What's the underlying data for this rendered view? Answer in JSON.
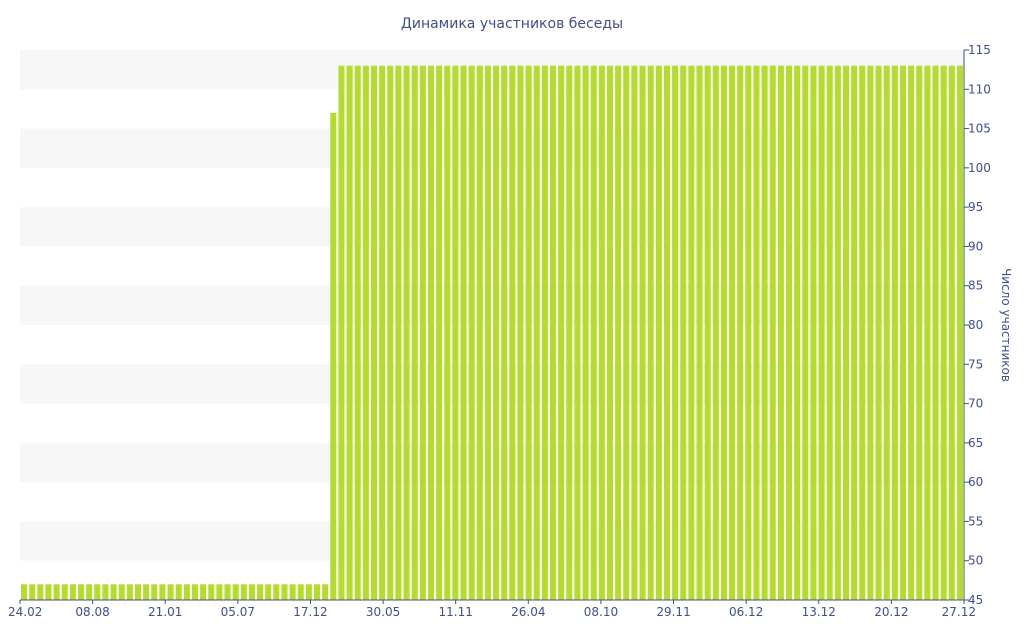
{
  "chart_data": {
    "type": "bar",
    "title": "Динамика участников беседы",
    "xlabel": "",
    "ylabel": "Число участников",
    "ylim": [
      45,
      115
    ],
    "yticks": [
      45,
      50,
      55,
      60,
      65,
      70,
      75,
      80,
      85,
      90,
      95,
      100,
      105,
      110,
      115
    ],
    "y_axis_position": "right",
    "grid": "alternating horizontal bands",
    "legend": "none",
    "x_tick_labels": [
      "24.02",
      "08.08",
      "21.01",
      "05.07",
      "17.12",
      "30.05",
      "11.11",
      "26.04",
      "08.10",
      "29.11",
      "06.12",
      "13.12",
      "20.12",
      "27.12"
    ],
    "colors": {
      "bar": "#b5dc2c",
      "band": "#f7f7f7",
      "text": "#3f4f8f",
      "axis": "#3f4f8f"
    },
    "values": [
      47,
      47,
      47,
      47,
      47,
      47,
      47,
      47,
      47,
      47,
      47,
      47,
      47,
      47,
      47,
      47,
      47,
      47,
      47,
      47,
      47,
      47,
      47,
      47,
      47,
      47,
      47,
      47,
      47,
      47,
      47,
      47,
      47,
      47,
      47,
      47,
      47,
      47,
      107,
      113,
      113,
      113,
      113,
      113,
      113,
      113,
      113,
      113,
      113,
      113,
      113,
      113,
      113,
      113,
      113,
      113,
      113,
      113,
      113,
      113,
      113,
      113,
      113,
      113,
      113,
      113,
      113,
      113,
      113,
      113,
      113,
      113,
      113,
      113,
      113,
      113,
      113,
      113,
      113,
      113,
      113,
      113,
      113,
      113,
      113,
      113,
      113,
      113,
      113,
      113,
      113,
      113,
      113,
      113,
      113,
      113,
      113,
      113,
      113,
      113,
      113,
      113,
      113,
      113,
      113,
      113,
      113,
      113,
      113,
      113,
      113,
      113,
      113,
      113,
      113,
      113
    ]
  }
}
